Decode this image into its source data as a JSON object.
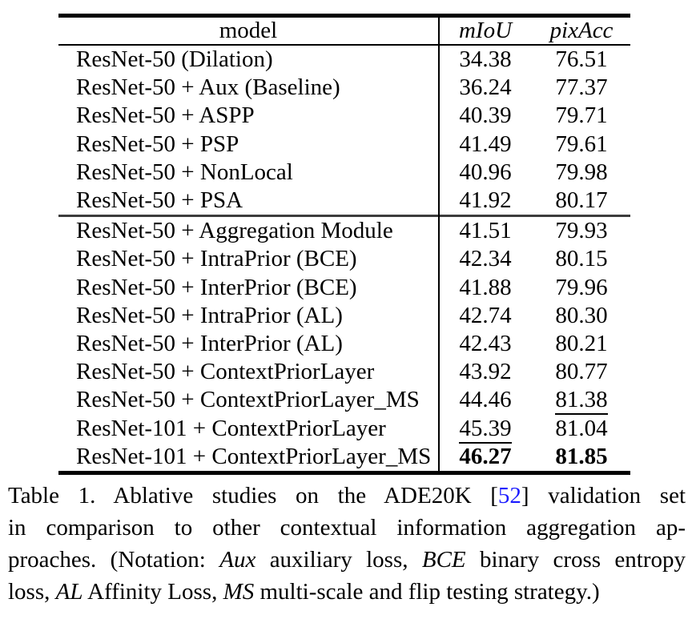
{
  "table": {
    "headers": {
      "model": "model",
      "miou": "mIoU",
      "pixacc": "pixAcc"
    },
    "rows": [
      {
        "model": "ResNet-50 (Dilation)",
        "miou": "34.38",
        "pixacc": "76.51"
      },
      {
        "model": "ResNet-50 + Aux (Baseline)",
        "miou": "36.24",
        "pixacc": "77.37"
      },
      {
        "model": "ResNet-50 + ASPP",
        "miou": "40.39",
        "pixacc": "79.71"
      },
      {
        "model": "ResNet-50 + PSP",
        "miou": "41.49",
        "pixacc": "79.61"
      },
      {
        "model": "ResNet-50 + NonLocal",
        "miou": "40.96",
        "pixacc": "79.98"
      },
      {
        "model": "ResNet-50 + PSA",
        "miou": "41.92",
        "pixacc": "80.17"
      },
      {
        "model": "ResNet-50 + Aggregation Module",
        "miou": "41.51",
        "pixacc": "79.93"
      },
      {
        "model": "ResNet-50 + IntraPrior (BCE)",
        "miou": "42.34",
        "pixacc": "80.15"
      },
      {
        "model": "ResNet-50 + InterPrior (BCE)",
        "miou": "41.88",
        "pixacc": "79.96"
      },
      {
        "model": "ResNet-50 + IntraPrior (AL)",
        "miou": "42.74",
        "pixacc": "80.30"
      },
      {
        "model": "ResNet-50 + InterPrior (AL)",
        "miou": "42.43",
        "pixacc": "80.21"
      },
      {
        "model": "ResNet-50 + ContextPriorLayer",
        "miou": "43.92",
        "pixacc": "80.77"
      },
      {
        "model": "ResNet-50 + ContextPriorLayer_MS",
        "miou": "44.46",
        "pixacc": "81.38",
        "pixacc_mark": "underline"
      },
      {
        "model": "ResNet-101 + ContextPriorLayer",
        "miou": "45.39",
        "pixacc": "81.04",
        "miou_mark": "underline"
      },
      {
        "model": "ResNet-101 + ContextPriorLayer_MS",
        "miou": "46.27",
        "pixacc": "81.85",
        "miou_mark": "bold",
        "pixacc_mark": "bold"
      }
    ]
  },
  "caption": {
    "label": "Table 1.",
    "lines": [
      {
        "segments": [
          {
            "text": "Table 1. Ablative studies on the ADE20K ["
          },
          {
            "text": "52",
            "style": "cite"
          },
          {
            "text": "] validation set"
          }
        ]
      },
      {
        "segments": [
          {
            "text": "in comparison to other contextual information aggregation ap-"
          }
        ]
      },
      {
        "segments": [
          {
            "text": "proaches. (Notation: "
          },
          {
            "text": "Aux",
            "style": "italic"
          },
          {
            "text": " auxiliary loss, "
          },
          {
            "text": "BCE",
            "style": "italic"
          },
          {
            "text": " binary cross entropy"
          }
        ]
      },
      {
        "segments": [
          {
            "text": "loss, "
          },
          {
            "text": "AL",
            "style": "italic"
          },
          {
            "text": " Affinity Loss, "
          },
          {
            "text": "MS",
            "style": "italic"
          },
          {
            "text": " multi-scale and flip testing strategy.)"
          }
        ]
      }
    ]
  },
  "colors": {
    "text": "#000000",
    "background": "#ffffff",
    "citation": "#1a1aff",
    "mid_rule": "#3c3c3c"
  }
}
